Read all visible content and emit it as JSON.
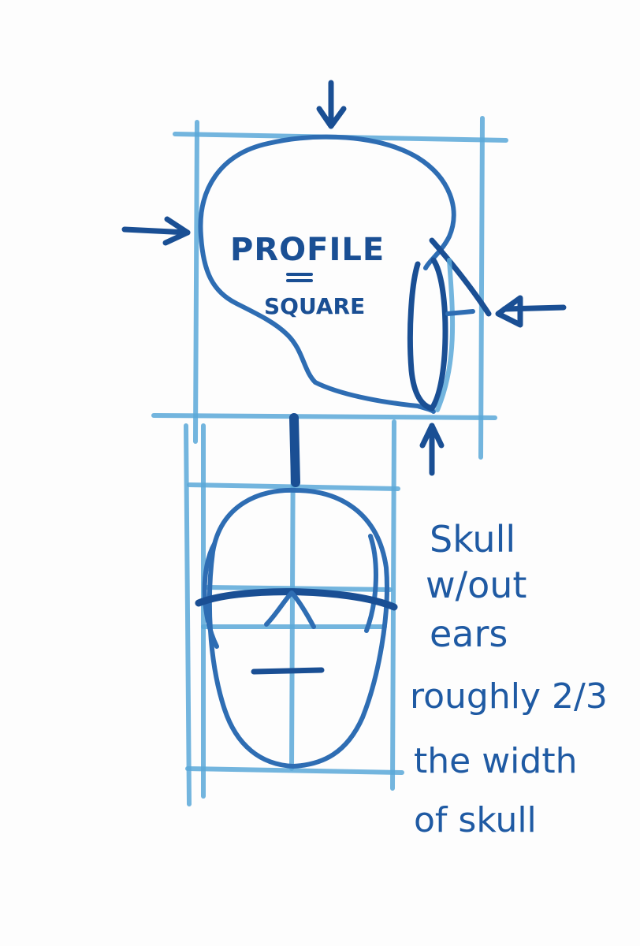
{
  "sketch": {
    "title": "PROFILE",
    "equals_mark": "=",
    "subtitle": "SQUARE",
    "note_lines": [
      "Skull",
      "w/out",
      "ears",
      "roughly 2/3",
      "the width",
      "of skull"
    ],
    "colors": {
      "light_stroke": "#5aa8d8",
      "dark_stroke": "#1a4f94",
      "paper": "#ffffff"
    }
  }
}
